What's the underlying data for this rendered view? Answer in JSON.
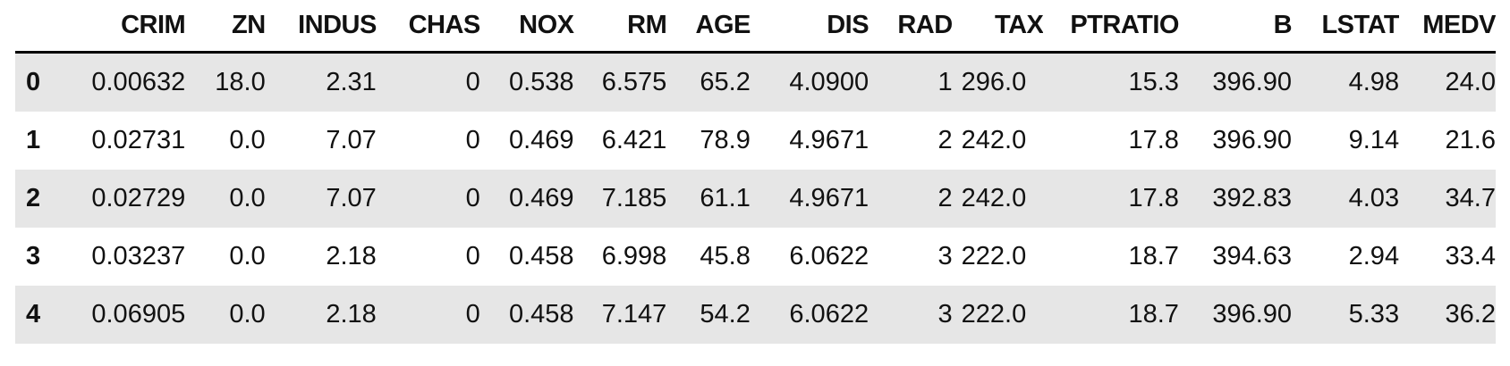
{
  "table": {
    "columns": [
      "CRIM",
      "ZN",
      "INDUS",
      "CHAS",
      "NOX",
      "RM",
      "AGE",
      "DIS",
      "RAD",
      "TAX",
      "PTRATIO",
      "B",
      "LSTAT",
      "MEDV"
    ],
    "rows": [
      {
        "index": "0",
        "cells": [
          "0.00632",
          "18.0",
          "2.31",
          "0",
          "0.538",
          "6.575",
          "65.2",
          "4.0900",
          "1",
          "296.0",
          "15.3",
          "396.90",
          "4.98",
          "24.0"
        ]
      },
      {
        "index": "1",
        "cells": [
          "0.02731",
          "0.0",
          "7.07",
          "0",
          "0.469",
          "6.421",
          "78.9",
          "4.9671",
          "2",
          "242.0",
          "17.8",
          "396.90",
          "9.14",
          "21.6"
        ]
      },
      {
        "index": "2",
        "cells": [
          "0.02729",
          "0.0",
          "7.07",
          "0",
          "0.469",
          "7.185",
          "61.1",
          "4.9671",
          "2",
          "242.0",
          "17.8",
          "392.83",
          "4.03",
          "34.7"
        ]
      },
      {
        "index": "3",
        "cells": [
          "0.03237",
          "0.0",
          "2.18",
          "0",
          "0.458",
          "6.998",
          "45.8",
          "6.0622",
          "3",
          "222.0",
          "18.7",
          "394.63",
          "2.94",
          "33.4"
        ]
      },
      {
        "index": "4",
        "cells": [
          "0.06905",
          "0.0",
          "2.18",
          "0",
          "0.458",
          "7.147",
          "54.2",
          "6.0622",
          "3",
          "222.0",
          "18.7",
          "396.90",
          "5.33",
          "36.2"
        ]
      }
    ]
  }
}
